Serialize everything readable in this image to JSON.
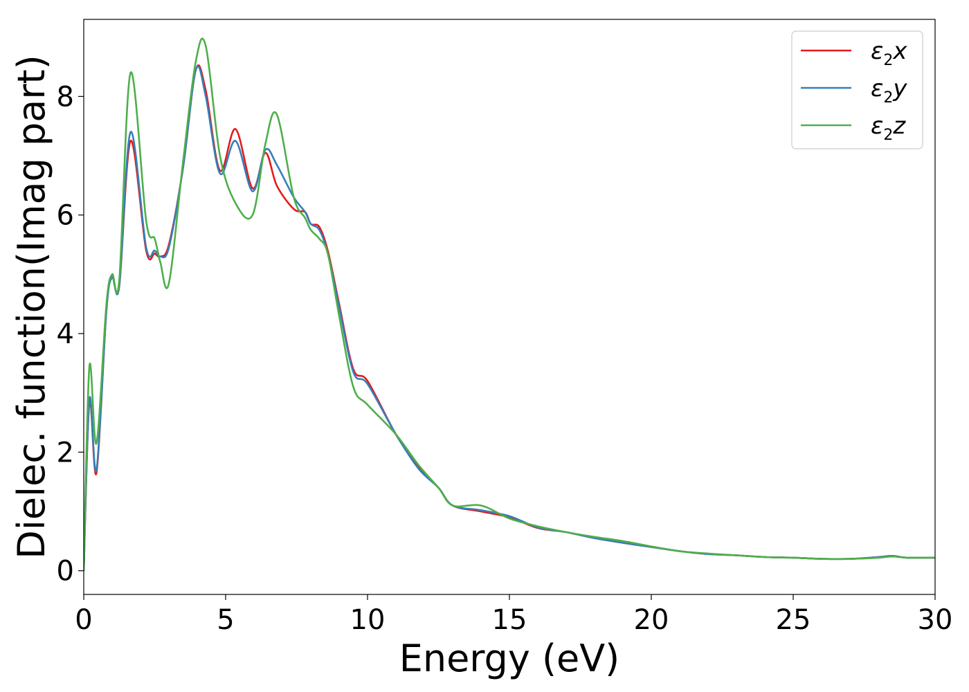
{
  "chart_data": {
    "type": "line",
    "xlabel": "Energy (eV)",
    "ylabel": "Dielec. function(Imag part)",
    "xlim": [
      0,
      30
    ],
    "ylim": [
      -0.4,
      9.3
    ],
    "xticks": [
      0,
      5,
      10,
      15,
      20,
      25,
      30
    ],
    "yticks": [
      0,
      2,
      4,
      6,
      8
    ],
    "grid": false,
    "legend_position": "top-right",
    "legend": [
      {
        "base": "ε",
        "sub": "2",
        "var": "x",
        "color": "#e41a1c"
      },
      {
        "base": "ε",
        "sub": "2",
        "var": "y",
        "color": "#377eb8"
      },
      {
        "base": "ε",
        "sub": "2",
        "var": "z",
        "color": "#4daf4a"
      }
    ],
    "x": [
      0,
      0.2,
      0.45,
      0.8,
      1.0,
      1.25,
      1.65,
      2.2,
      2.5,
      2.7,
      3.0,
      3.5,
      3.95,
      4.3,
      4.8,
      5.35,
      5.95,
      6.4,
      6.8,
      7.4,
      7.8,
      8.0,
      8.3,
      8.6,
      9.0,
      9.5,
      10.0,
      11.0,
      11.8,
      12.5,
      13.0,
      14.0,
      15.0,
      16.0,
      17.0,
      18.0,
      19.0,
      20.0,
      21.0,
      22.0,
      23.0,
      24.0,
      25.0,
      26.0,
      27.0,
      28.0,
      28.5,
      29.0,
      30.0
    ],
    "series": [
      {
        "color": "#e41a1c",
        "values": [
          0,
          2.85,
          1.65,
          4.4,
          4.95,
          4.8,
          7.25,
          5.4,
          5.35,
          5.3,
          5.5,
          6.8,
          8.45,
          8.1,
          6.75,
          7.45,
          6.45,
          7.05,
          6.5,
          6.1,
          6.05,
          5.85,
          5.8,
          5.4,
          4.5,
          3.4,
          3.2,
          2.3,
          1.75,
          1.4,
          1.1,
          1.0,
          0.9,
          0.72,
          0.65,
          0.55,
          0.47,
          0.4,
          0.33,
          0.28,
          0.26,
          0.23,
          0.22,
          0.2,
          0.2,
          0.23,
          0.25,
          0.22,
          0.22
        ]
      },
      {
        "color": "#377eb8",
        "values": [
          0,
          2.9,
          1.7,
          4.4,
          4.95,
          4.8,
          7.4,
          5.45,
          5.4,
          5.3,
          5.45,
          6.8,
          8.45,
          8.0,
          6.7,
          7.25,
          6.4,
          7.1,
          6.85,
          6.3,
          6.05,
          5.85,
          5.75,
          5.35,
          4.45,
          3.35,
          3.15,
          2.3,
          1.72,
          1.4,
          1.1,
          1.02,
          0.92,
          0.73,
          0.65,
          0.55,
          0.47,
          0.4,
          0.33,
          0.28,
          0.26,
          0.23,
          0.22,
          0.2,
          0.2,
          0.23,
          0.25,
          0.22,
          0.22
        ]
      },
      {
        "color": "#4daf4a",
        "values": [
          0,
          3.45,
          2.15,
          4.5,
          5.0,
          4.9,
          8.4,
          5.9,
          5.6,
          5.2,
          4.85,
          6.9,
          8.6,
          8.85,
          7.0,
          6.2,
          6.0,
          7.2,
          7.7,
          6.3,
          5.95,
          5.75,
          5.6,
          5.35,
          4.3,
          3.1,
          2.8,
          2.3,
          1.78,
          1.4,
          1.1,
          1.1,
          0.88,
          0.75,
          0.65,
          0.57,
          0.5,
          0.41,
          0.33,
          0.29,
          0.26,
          0.23,
          0.22,
          0.2,
          0.2,
          0.22,
          0.24,
          0.22,
          0.22
        ]
      }
    ]
  }
}
